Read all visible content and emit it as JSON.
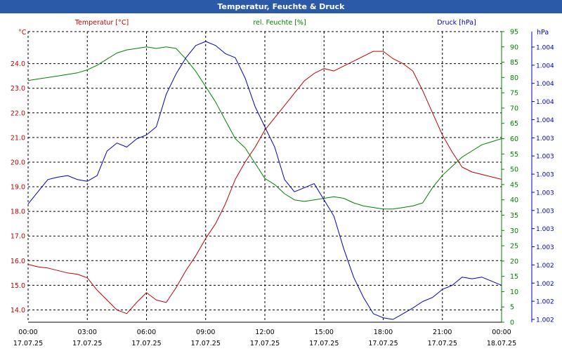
{
  "window": {
    "title": "Temperatur, Feuchte & Druck"
  },
  "colors": {
    "temperature": "#c00000",
    "humidity": "#008000",
    "pressure": "#0000c0",
    "grid": "#000000",
    "titlebar": "#2b5aa8"
  },
  "chart_data": {
    "type": "line",
    "title": "Temperatur, Feuchte & Druck",
    "grid": true,
    "x_labels": [
      {
        "time": "00:00",
        "date": "17.07.25"
      },
      {
        "time": "03:00",
        "date": "17.07.25"
      },
      {
        "time": "06:00",
        "date": "17.07.25"
      },
      {
        "time": "09:00",
        "date": "17.07.25"
      },
      {
        "time": "12:00",
        "date": "17.07.25"
      },
      {
        "time": "15:00",
        "date": "17.07.25"
      },
      {
        "time": "18:00",
        "date": "17.07.25"
      },
      {
        "time": "21:00",
        "date": "17.07.25"
      },
      {
        "time": "00:00",
        "date": "18.07.25"
      }
    ],
    "axes": {
      "temperature": {
        "label": "Temperatur [°C]",
        "unit": "°C",
        "ylim": [
          13.5,
          25.3
        ],
        "ticks": [
          "24.0",
          "23.0",
          "22.0",
          "21.0",
          "20.0",
          "19.0",
          "18.0",
          "17.0",
          "16.0",
          "15.0",
          "14.0"
        ]
      },
      "humidity": {
        "label": "rel. Feuchte [%]",
        "unit": "%",
        "ylim": [
          0,
          95
        ],
        "ticks": [
          "95",
          "90",
          "85",
          "80",
          "75",
          "70",
          "65",
          "60",
          "55",
          "50",
          "45",
          "40",
          "35",
          "30",
          "25",
          "20",
          "15",
          "10",
          "5",
          "0"
        ]
      },
      "pressure": {
        "label": "Druck [hPa]",
        "unit": "hPa",
        "ticks": [
          "1.004",
          "1.004",
          "1.004",
          "1.004",
          "1.004",
          "1.003",
          "1.003",
          "1.003",
          "1.003",
          "1.003",
          "1.003",
          "1.003",
          "1.002",
          "1.002",
          "1.002",
          "1.002"
        ]
      }
    },
    "series": [
      {
        "name": "Temperatur [°C]",
        "axis": "temperature",
        "x": [
          0,
          0.5,
          1,
          1.5,
          2,
          2.5,
          3,
          3.5,
          4,
          4.5,
          5,
          5.5,
          6,
          6.5,
          7,
          7.5,
          8,
          8.5,
          9,
          9.5,
          10,
          10.5,
          11,
          11.5,
          12,
          12.5,
          13,
          13.5,
          14,
          14.5,
          15,
          15.5,
          16,
          16.5,
          17,
          17.5,
          18,
          18.5,
          19,
          19.5,
          20,
          20.5,
          21,
          21.5,
          22,
          22.5,
          23,
          23.5,
          24
        ],
        "values": [
          15.85,
          15.75,
          15.7,
          15.6,
          15.5,
          15.45,
          15.3,
          14.8,
          14.4,
          14.0,
          13.85,
          14.3,
          14.7,
          14.4,
          14.3,
          14.9,
          15.6,
          16.2,
          16.9,
          17.5,
          18.3,
          19.3,
          20.0,
          20.6,
          21.3,
          21.8,
          22.3,
          22.8,
          23.3,
          23.6,
          23.8,
          23.7,
          23.9,
          24.1,
          24.3,
          24.5,
          24.5,
          24.2,
          24.0,
          23.7,
          22.9,
          22.0,
          21.1,
          20.4,
          19.8,
          19.6,
          19.5,
          19.4,
          19.3
        ]
      },
      {
        "name": "rel. Feuchte [%]",
        "axis": "humidity",
        "x": [
          0,
          0.5,
          1,
          1.5,
          2,
          2.5,
          3,
          3.5,
          4,
          4.5,
          5,
          5.5,
          6,
          6.5,
          7,
          7.5,
          8,
          8.5,
          9,
          9.5,
          10,
          10.5,
          11,
          11.5,
          12,
          12.5,
          13,
          13.5,
          14,
          14.5,
          15,
          15.5,
          16,
          16.5,
          17,
          17.5,
          18,
          18.5,
          19,
          19.5,
          20,
          20.5,
          21,
          21.5,
          22,
          22.5,
          23,
          23.5,
          24
        ],
        "values": [
          79,
          79.5,
          80,
          80.5,
          81,
          81.5,
          82.5,
          84,
          86,
          88,
          89,
          89.5,
          90,
          89.5,
          90,
          89.5,
          86,
          82,
          77,
          72,
          66,
          60,
          57,
          52,
          47,
          45,
          42,
          40,
          39.5,
          40,
          40.5,
          41,
          40.5,
          39,
          38,
          37.5,
          37,
          37,
          37.5,
          38,
          39,
          44,
          48,
          51,
          54,
          56,
          58,
          59,
          60
        ]
      },
      {
        "name": "Druck [hPa]",
        "axis": "pressure",
        "x": [
          0,
          0.5,
          1,
          1.5,
          2,
          2.5,
          3,
          3.5,
          4,
          4.5,
          5,
          5.5,
          6,
          6.5,
          7,
          7.5,
          8,
          8.5,
          9,
          9.5,
          10,
          10.5,
          11,
          11.5,
          12,
          12.5,
          13,
          13.5,
          14,
          14.5,
          15,
          15.5,
          16,
          16.5,
          17,
          17.5,
          18,
          18.5,
          19,
          19.5,
          20,
          20.5,
          21,
          21.5,
          22,
          22.5,
          23,
          23.5,
          24
        ],
        "values": [
          1003.0,
          1003.15,
          1003.3,
          1003.33,
          1003.35,
          1003.3,
          1003.28,
          1003.35,
          1003.65,
          1003.75,
          1003.7,
          1003.8,
          1003.85,
          1003.95,
          1004.35,
          1004.6,
          1004.8,
          1004.95,
          1005.0,
          1004.95,
          1004.85,
          1004.8,
          1004.55,
          1004.2,
          1003.95,
          1003.7,
          1003.3,
          1003.15,
          1003.2,
          1003.25,
          1003.05,
          1002.85,
          1002.45,
          1002.1,
          1001.85,
          1001.65,
          1001.6,
          1001.58,
          1001.65,
          1001.72,
          1001.8,
          1001.85,
          1001.95,
          1002.0,
          1002.1,
          1002.08,
          1002.1,
          1002.05,
          1002.0
        ]
      }
    ]
  }
}
